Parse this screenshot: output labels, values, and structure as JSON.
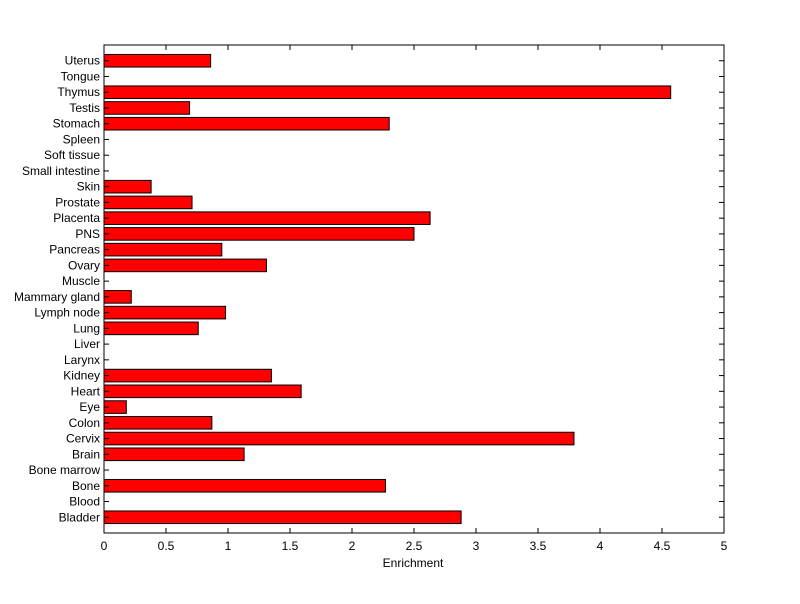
{
  "chart_data": {
    "type": "bar",
    "orientation": "horizontal",
    "categories": [
      "Bladder",
      "Blood",
      "Bone",
      "Bone marrow",
      "Brain",
      "Cervix",
      "Colon",
      "Eye",
      "Heart",
      "Kidney",
      "Larynx",
      "Liver",
      "Lung",
      "Lymph node",
      "Mammary gland",
      "Muscle",
      "Ovary",
      "Pancreas",
      "PNS",
      "Placenta",
      "Prostate",
      "Skin",
      "Small intestine",
      "Soft tissue",
      "Spleen",
      "Stomach",
      "Testis",
      "Thymus",
      "Tongue",
      "Uterus"
    ],
    "values": [
      2.88,
      0,
      2.27,
      0,
      1.13,
      3.79,
      0.87,
      0.18,
      1.59,
      1.35,
      0,
      0,
      0.76,
      0.98,
      0.22,
      0,
      1.31,
      0.95,
      2.5,
      2.63,
      0.71,
      0.38,
      0,
      0,
      0,
      2.3,
      0.69,
      4.57,
      0,
      0.86
    ],
    "xlabel": "Enrichment",
    "ylabel": "",
    "title": "",
    "xlim": [
      0,
      5
    ],
    "xticks": [
      "0",
      "0.5",
      "1",
      "1.5",
      "2",
      "2.5",
      "3",
      "3.5",
      "4",
      "4.5",
      "5"
    ],
    "grid": false,
    "bar_color": "#ff0000",
    "bar_edge_color": "#000000"
  }
}
